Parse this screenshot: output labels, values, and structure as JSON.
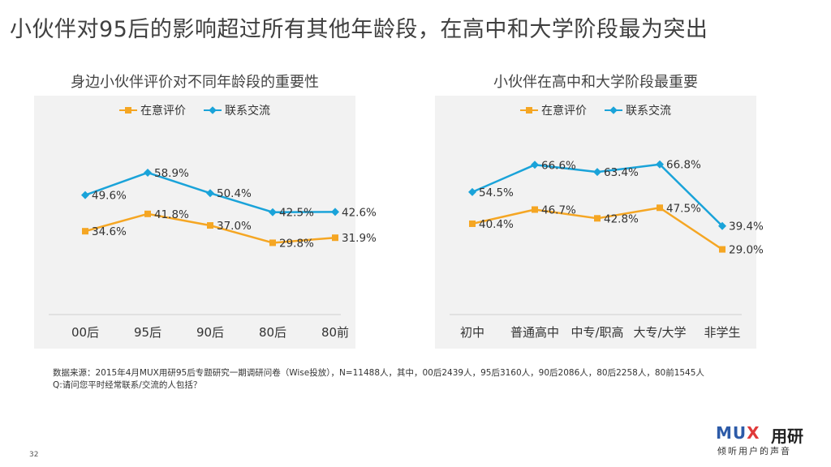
{
  "slide_title": "小伙伴对95后的影响超过所有其他年龄段，在高中和大学阶段最为突出",
  "colors": {
    "orange": "#f5a623",
    "blue": "#1aa3d9",
    "panel": "#f2f2f2"
  },
  "chart_data": [
    {
      "type": "line",
      "title": "身边小伙伴评价对不同年龄段的重要性",
      "categories": [
        "00后",
        "95后",
        "90后",
        "80后",
        "80前"
      ],
      "ylim": [
        0,
        70
      ],
      "series": [
        {
          "name": "在意评价",
          "color": "#f5a623",
          "marker": "square",
          "values": [
            34.6,
            41.8,
            37.0,
            29.8,
            31.9
          ],
          "labels": [
            "34.6%",
            "41.8%",
            "37.0%",
            "29.8%",
            "31.9%"
          ]
        },
        {
          "name": "联系交流",
          "color": "#1aa3d9",
          "marker": "diamond",
          "values": [
            49.6,
            58.9,
            50.4,
            42.5,
            42.6
          ],
          "labels": [
            "49.6%",
            "58.9%",
            "50.4%",
            "42.5%",
            "42.6%"
          ]
        }
      ],
      "legend": "top-center",
      "grid": false
    },
    {
      "type": "line",
      "title": "小伙伴在高中和大学阶段最重要",
      "categories": [
        "初中",
        "普通高中",
        "中专/职高",
        "大专/大学",
        "非学生"
      ],
      "ylim": [
        0,
        75
      ],
      "series": [
        {
          "name": "在意评价",
          "color": "#f5a623",
          "marker": "square",
          "values": [
            40.4,
            46.7,
            42.8,
            47.5,
            29.0
          ],
          "labels": [
            "40.4%",
            "46.7%",
            "42.8%",
            "47.5%",
            "29.0%"
          ]
        },
        {
          "name": "联系交流",
          "color": "#1aa3d9",
          "marker": "diamond",
          "values": [
            54.5,
            66.6,
            63.4,
            66.8,
            39.4
          ],
          "labels": [
            "54.5%",
            "66.6%",
            "63.4%",
            "66.8%",
            "39.4%"
          ]
        }
      ],
      "legend": "top-center",
      "grid": false
    }
  ],
  "footnote": {
    "line1": "数据来源：2015年4月MUX用研95后专题研究一期调研问卷（Wise投放），N=11488人，其中，00后2439人，95后3160人，90后2086人，80后2258人，80前1545人",
    "line2": "Q:请问您平时经常联系/交流的人包括？"
  },
  "page_number": "32",
  "logo": {
    "mark_a": "MU",
    "mark_b": "X",
    "cn": "用研",
    "sub": "倾听用户的声音"
  }
}
